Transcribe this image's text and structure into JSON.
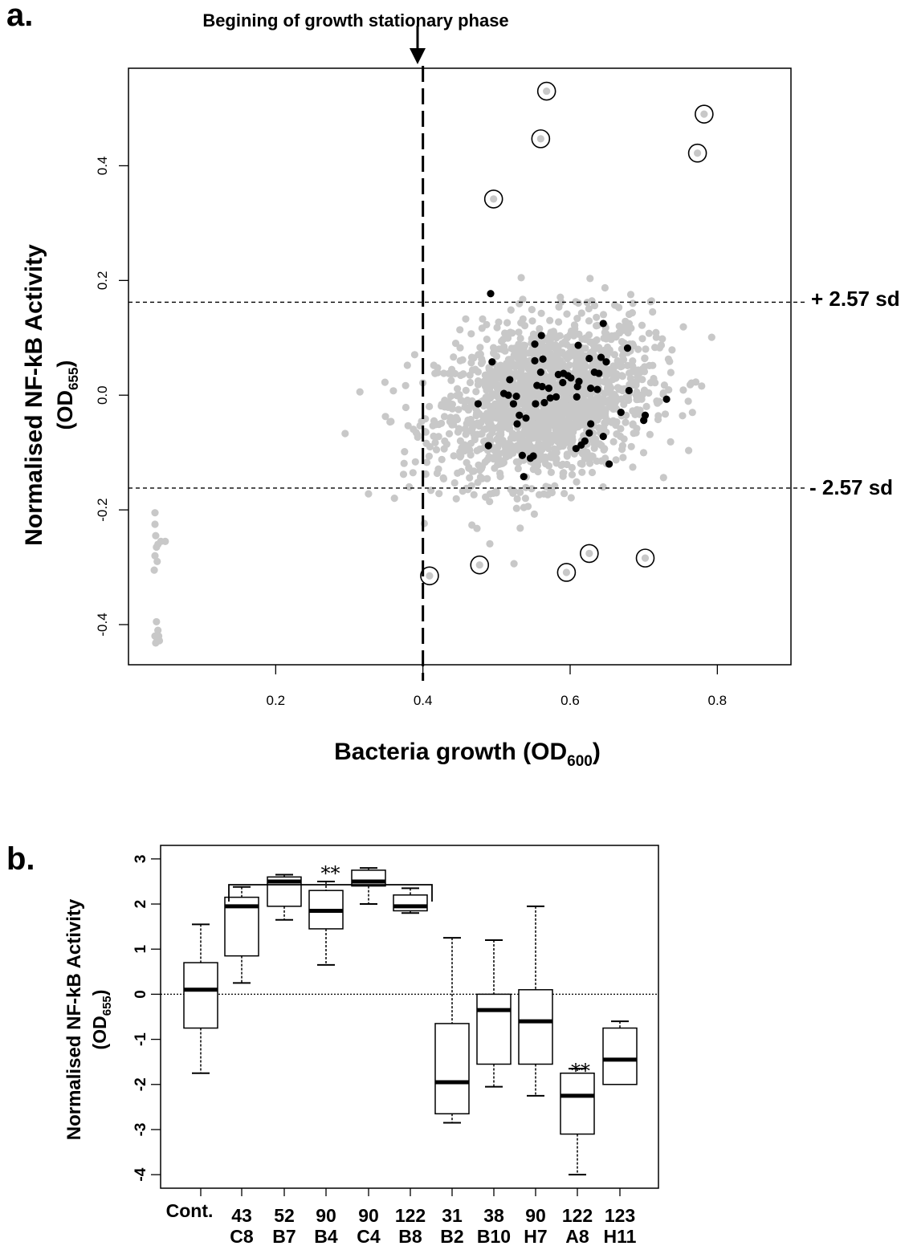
{
  "chart_data": [
    {
      "type": "scatter",
      "panel_label": "a.",
      "annotation_top": "Begining of growth stationary phase",
      "xlabel": "Bacteria growth (OD",
      "xlabel_sub": "600",
      "xlabel_end": ")",
      "ylabel_line1": "Normalised NF-kB Activity",
      "ylabel_line2": "(OD",
      "ylabel_sub": "655",
      "ylabel_end": ")",
      "xlim": [
        0.0,
        0.9
      ],
      "ylim": [
        -0.47,
        0.57
      ],
      "x_ticks": [
        "0.2",
        "0.4",
        "0.6",
        "0.8"
      ],
      "y_ticks": [
        "-0.4",
        "-0.2",
        "0.0",
        "0.2",
        "0.4"
      ],
      "vline_x": 0.4,
      "threshold_upper": 0.162,
      "threshold_lower": -0.162,
      "threshold_upper_label": "+ 2.57 sd",
      "threshold_lower_label": "- 2.57 sd",
      "colors": {
        "points": "#c8c8c8",
        "highlighted": "#000000",
        "background": "#ffffff"
      },
      "circled_points": [
        {
          "x": 0.568,
          "y": 0.53
        },
        {
          "x": 0.782,
          "y": 0.49
        },
        {
          "x": 0.56,
          "y": 0.447
        },
        {
          "x": 0.773,
          "y": 0.422
        },
        {
          "x": 0.496,
          "y": 0.342
        },
        {
          "x": 0.409,
          "y": -0.315
        },
        {
          "x": 0.477,
          "y": -0.296
        },
        {
          "x": 0.595,
          "y": -0.309
        },
        {
          "x": 0.626,
          "y": -0.276
        },
        {
          "x": 0.702,
          "y": -0.284
        }
      ],
      "black_points": [
        {
          "x": 0.492,
          "y": 0.177
        },
        {
          "x": 0.645,
          "y": 0.125
        },
        {
          "x": 0.561,
          "y": 0.104
        },
        {
          "x": 0.552,
          "y": 0.089
        },
        {
          "x": 0.611,
          "y": 0.087
        },
        {
          "x": 0.678,
          "y": 0.082
        },
        {
          "x": 0.642,
          "y": 0.066
        },
        {
          "x": 0.649,
          "y": 0.058
        },
        {
          "x": 0.626,
          "y": 0.064
        },
        {
          "x": 0.494,
          "y": 0.058
        },
        {
          "x": 0.563,
          "y": 0.063
        },
        {
          "x": 0.552,
          "y": 0.06
        },
        {
          "x": 0.56,
          "y": 0.04
        },
        {
          "x": 0.584,
          "y": 0.036
        },
        {
          "x": 0.591,
          "y": 0.038
        },
        {
          "x": 0.597,
          "y": 0.034
        },
        {
          "x": 0.601,
          "y": 0.03
        },
        {
          "x": 0.612,
          "y": 0.024
        },
        {
          "x": 0.633,
          "y": 0.04
        },
        {
          "x": 0.639,
          "y": 0.038
        },
        {
          "x": 0.518,
          "y": 0.027
        },
        {
          "x": 0.555,
          "y": 0.017
        },
        {
          "x": 0.562,
          "y": 0.015
        },
        {
          "x": 0.571,
          "y": 0.012
        },
        {
          "x": 0.59,
          "y": 0.022
        },
        {
          "x": 0.61,
          "y": 0.015
        },
        {
          "x": 0.628,
          "y": 0.012
        },
        {
          "x": 0.637,
          "y": 0.01
        },
        {
          "x": 0.68,
          "y": 0.008
        },
        {
          "x": 0.51,
          "y": 0.003
        },
        {
          "x": 0.516,
          "y": 0.0
        },
        {
          "x": 0.527,
          "y": -0.002
        },
        {
          "x": 0.573,
          "y": -0.005
        },
        {
          "x": 0.581,
          "y": -0.003
        },
        {
          "x": 0.609,
          "y": -0.003
        },
        {
          "x": 0.731,
          "y": -0.007
        },
        {
          "x": 0.475,
          "y": -0.015
        },
        {
          "x": 0.523,
          "y": -0.015
        },
        {
          "x": 0.553,
          "y": -0.015
        },
        {
          "x": 0.565,
          "y": -0.013
        },
        {
          "x": 0.54,
          "y": -0.04
        },
        {
          "x": 0.528,
          "y": -0.05
        },
        {
          "x": 0.702,
          "y": -0.035
        },
        {
          "x": 0.7,
          "y": -0.044
        },
        {
          "x": 0.669,
          "y": -0.03
        },
        {
          "x": 0.628,
          "y": -0.05
        },
        {
          "x": 0.626,
          "y": -0.066
        },
        {
          "x": 0.645,
          "y": -0.072
        },
        {
          "x": 0.531,
          "y": -0.035
        },
        {
          "x": 0.615,
          "y": -0.087
        },
        {
          "x": 0.62,
          "y": -0.08
        },
        {
          "x": 0.608,
          "y": -0.093
        },
        {
          "x": 0.489,
          "y": -0.088
        },
        {
          "x": 0.535,
          "y": -0.105
        },
        {
          "x": 0.55,
          "y": -0.106
        },
        {
          "x": 0.546,
          "y": -0.11
        },
        {
          "x": 0.653,
          "y": -0.12
        },
        {
          "x": 0.537,
          "y": -0.142
        }
      ],
      "outlier_cluster_points": [
        {
          "x": 0.036,
          "y": -0.205
        },
        {
          "x": 0.036,
          "y": -0.225
        },
        {
          "x": 0.037,
          "y": -0.245
        },
        {
          "x": 0.038,
          "y": -0.265
        },
        {
          "x": 0.04,
          "y": -0.26
        },
        {
          "x": 0.044,
          "y": -0.255
        },
        {
          "x": 0.05,
          "y": -0.255
        },
        {
          "x": 0.036,
          "y": -0.28
        },
        {
          "x": 0.039,
          "y": -0.29
        },
        {
          "x": 0.035,
          "y": -0.305
        },
        {
          "x": 0.038,
          "y": -0.395
        },
        {
          "x": 0.04,
          "y": -0.41
        },
        {
          "x": 0.036,
          "y": -0.42
        },
        {
          "x": 0.039,
          "y": -0.425
        },
        {
          "x": 0.042,
          "y": -0.428
        },
        {
          "x": 0.037,
          "y": -0.432
        },
        {
          "x": 0.041,
          "y": -0.42
        }
      ],
      "gray_points_summary": {
        "count": 1700,
        "center_x": 0.565,
        "center_y": -0.01,
        "sd_x": 0.072,
        "sd_y": 0.068
      }
    },
    {
      "type": "box",
      "panel_label": "b.",
      "ylabel_line1": "Normalised NF-kB Activity",
      "ylabel_line2": "(OD",
      "ylabel_sub": "655",
      "ylabel_end": ")",
      "ylim": [
        -4.3,
        3.3
      ],
      "y_ticks": [
        "-4",
        "-3",
        "-2",
        "-1",
        "0",
        "1",
        "2",
        "3"
      ],
      "reference_line_y": 0.0,
      "significance_bracket": {
        "from": 1,
        "to": 5,
        "label": "**"
      },
      "significance_marker": {
        "category_index": 9,
        "label": "**"
      },
      "categories": [
        {
          "line1": "Cont.",
          "line2": ""
        },
        {
          "line1": "43",
          "line2": "C8"
        },
        {
          "line1": "52",
          "line2": "B7"
        },
        {
          "line1": "90",
          "line2": "B4"
        },
        {
          "line1": "90",
          "line2": "C4"
        },
        {
          "line1": "122",
          "line2": "B8"
        },
        {
          "line1": "31",
          "line2": "B2"
        },
        {
          "line1": "38",
          "line2": "B10"
        },
        {
          "line1": "90",
          "line2": "H7"
        },
        {
          "line1": "122",
          "line2": "A8"
        },
        {
          "line1": "123",
          "line2": "H11"
        }
      ],
      "boxes": [
        {
          "whisker_low": -1.75,
          "q1": -0.75,
          "median": 0.1,
          "q3": 0.7,
          "whisker_high": 1.55
        },
        {
          "whisker_low": 0.25,
          "q1": 0.85,
          "median": 1.95,
          "q3": 2.15,
          "whisker_high": 2.38
        },
        {
          "whisker_low": 1.65,
          "q1": 1.95,
          "median": 2.5,
          "q3": 2.6,
          "whisker_high": 2.65
        },
        {
          "whisker_low": 0.65,
          "q1": 1.45,
          "median": 1.85,
          "q3": 2.3,
          "whisker_high": 2.5
        },
        {
          "whisker_low": 2.0,
          "q1": 2.4,
          "median": 2.5,
          "q3": 2.75,
          "whisker_high": 2.8
        },
        {
          "whisker_low": 1.8,
          "q1": 1.85,
          "median": 1.95,
          "q3": 2.2,
          "whisker_high": 2.35
        },
        {
          "whisker_low": -2.85,
          "q1": -2.65,
          "median": -1.95,
          "q3": -0.65,
          "whisker_high": 1.25
        },
        {
          "whisker_low": -2.05,
          "q1": -1.55,
          "median": -0.35,
          "q3": 0.0,
          "whisker_high": 1.2
        },
        {
          "whisker_low": -2.25,
          "q1": -1.55,
          "median": -0.6,
          "q3": 0.1,
          "whisker_high": 1.95
        },
        {
          "whisker_low": -4.0,
          "q1": -3.1,
          "median": -2.25,
          "q3": -1.75,
          "whisker_high": -1.65
        },
        {
          "whisker_low": null,
          "q1": -2.0,
          "median": -1.45,
          "q3": -0.75,
          "whisker_high": -0.6
        }
      ]
    }
  ]
}
